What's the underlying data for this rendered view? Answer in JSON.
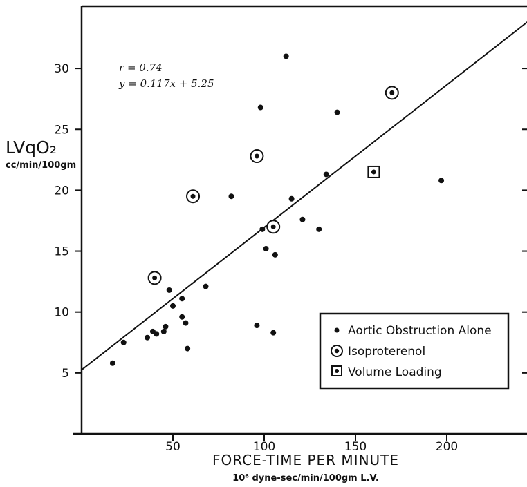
{
  "chart_data": {
    "type": "scatter",
    "xlabel": "FORCE-TIME PER MINUTE",
    "xlabel_units": "10⁶ dyne-sec/min/100gm L.V.",
    "ylabel": "LVqO₂",
    "ylabel_units": "cc/min/100gm",
    "xlim": [
      0,
      250
    ],
    "ylim": [
      0,
      35
    ],
    "xticks": [
      50,
      100,
      150,
      200
    ],
    "yticks": [
      5,
      10,
      15,
      20,
      25,
      30
    ],
    "annotations": [
      "r = 0.74",
      "y = 0.117x + 5.25"
    ],
    "regression": {
      "slope": 0.117,
      "intercept": 5.25
    },
    "legend_position": "bottom-right",
    "series": [
      {
        "name": "Aortic Obstruction Alone",
        "marker": "dot",
        "points": [
          [
            17,
            5.8
          ],
          [
            23,
            7.5
          ],
          [
            36,
            7.9
          ],
          [
            39,
            8.4
          ],
          [
            41,
            8.2
          ],
          [
            45,
            8.4
          ],
          [
            46,
            8.8
          ],
          [
            48,
            11.8
          ],
          [
            50,
            10.5
          ],
          [
            55,
            11.1
          ],
          [
            55,
            9.6
          ],
          [
            57,
            9.1
          ],
          [
            58,
            7.0
          ],
          [
            68,
            12.1
          ],
          [
            82,
            19.5
          ],
          [
            96,
            8.9
          ],
          [
            98,
            26.8
          ],
          [
            99,
            16.8
          ],
          [
            101,
            15.2
          ],
          [
            105,
            8.3
          ],
          [
            106,
            14.7
          ],
          [
            112,
            31.0
          ],
          [
            115,
            19.3
          ],
          [
            121,
            17.6
          ],
          [
            130,
            16.8
          ],
          [
            134,
            21.3
          ],
          [
            140,
            26.4
          ],
          [
            197,
            20.8
          ]
        ]
      },
      {
        "name": "Isoproterenol",
        "marker": "circled-dot",
        "points": [
          [
            40,
            12.8
          ],
          [
            61,
            19.5
          ],
          [
            96,
            22.8
          ],
          [
            105,
            17.0
          ],
          [
            170,
            28.0
          ]
        ]
      },
      {
        "name": "Volume Loading",
        "marker": "boxed-dot",
        "points": [
          [
            160,
            21.5
          ]
        ]
      }
    ]
  }
}
